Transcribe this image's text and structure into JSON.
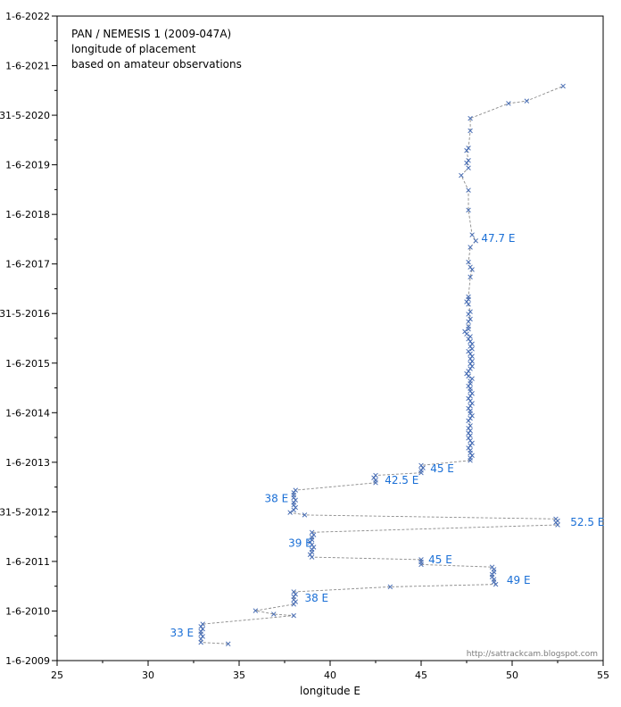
{
  "chart_data": {
    "type": "scatter",
    "title_lines": [
      "PAN / NEMESIS 1  (2009-047A)",
      "longitude of placement",
      "based on amateur observations"
    ],
    "xlabel": "longitude E",
    "ylabel": "",
    "xlim": [
      25,
      55
    ],
    "ylim": [
      2009.413,
      2022.413
    ],
    "x_ticks": [
      "25",
      "30",
      "35",
      "40",
      "45",
      "50",
      "55"
    ],
    "y_ticks": [
      "1-6-2009",
      "1-6-2010",
      "1-6-2011",
      "31-5-2012",
      "1-6-2013",
      "1-6-2014",
      "1-6-2015",
      "31-5-2016",
      "1-6-2017",
      "1-6-2018",
      "1-6-2019",
      "31-5-2020",
      "1-6-2021",
      "1-6-2022"
    ],
    "credit": "http://sattrackcam.blogspot.com",
    "series": [
      {
        "name": "longitude",
        "points": [
          [
            34.4,
            2009.75
          ],
          [
            32.9,
            2009.78
          ],
          [
            32.9,
            2009.85
          ],
          [
            33.0,
            2009.9
          ],
          [
            32.9,
            2009.95
          ],
          [
            32.9,
            2010.0
          ],
          [
            33.0,
            2010.05
          ],
          [
            32.9,
            2010.1
          ],
          [
            33.0,
            2010.15
          ],
          [
            38.0,
            2010.32
          ],
          [
            36.9,
            2010.35
          ],
          [
            35.9,
            2010.42
          ],
          [
            38.0,
            2010.55
          ],
          [
            38.1,
            2010.6
          ],
          [
            38.0,
            2010.64
          ],
          [
            38.0,
            2010.7
          ],
          [
            38.1,
            2010.75
          ],
          [
            38.0,
            2010.8
          ],
          [
            43.3,
            2010.9
          ],
          [
            49.1,
            2010.95
          ],
          [
            49.0,
            2011.0
          ],
          [
            49.0,
            2011.05
          ],
          [
            48.9,
            2011.1
          ],
          [
            48.9,
            2011.15
          ],
          [
            49.0,
            2011.2
          ],
          [
            49.0,
            2011.25
          ],
          [
            48.9,
            2011.3
          ],
          [
            45.0,
            2011.35
          ],
          [
            45.0,
            2011.4
          ],
          [
            45.0,
            2011.45
          ],
          [
            39.0,
            2011.5
          ],
          [
            38.9,
            2011.55
          ],
          [
            39.0,
            2011.6
          ],
          [
            39.0,
            2011.65
          ],
          [
            39.1,
            2011.7
          ],
          [
            39.0,
            2011.75
          ],
          [
            38.9,
            2011.8
          ],
          [
            39.0,
            2011.85
          ],
          [
            39.0,
            2011.9
          ],
          [
            39.1,
            2011.95
          ],
          [
            39.0,
            2012.0
          ],
          [
            52.5,
            2012.15
          ],
          [
            52.4,
            2012.2
          ],
          [
            52.5,
            2012.23
          ],
          [
            52.4,
            2012.27
          ],
          [
            38.6,
            2012.35
          ],
          [
            37.8,
            2012.4
          ],
          [
            38.0,
            2012.45
          ],
          [
            38.1,
            2012.5
          ],
          [
            38.0,
            2012.55
          ],
          [
            38.0,
            2012.6
          ],
          [
            38.1,
            2012.65
          ],
          [
            38.0,
            2012.7
          ],
          [
            38.0,
            2012.75
          ],
          [
            38.0,
            2012.8
          ],
          [
            38.1,
            2012.85
          ],
          [
            42.5,
            2013.0
          ],
          [
            42.5,
            2013.05
          ],
          [
            42.4,
            2013.1
          ],
          [
            42.5,
            2013.15
          ],
          [
            45.0,
            2013.2
          ],
          [
            45.0,
            2013.25
          ],
          [
            45.1,
            2013.3
          ],
          [
            45.0,
            2013.35
          ],
          [
            47.7,
            2013.45
          ],
          [
            47.7,
            2013.5
          ],
          [
            47.8,
            2013.55
          ],
          [
            47.7,
            2013.6
          ],
          [
            47.7,
            2013.65
          ],
          [
            47.6,
            2013.7
          ],
          [
            47.7,
            2013.75
          ],
          [
            47.8,
            2013.8
          ],
          [
            47.7,
            2013.85
          ],
          [
            47.6,
            2013.9
          ],
          [
            47.7,
            2013.95
          ],
          [
            47.6,
            2014.0
          ],
          [
            47.7,
            2014.05
          ],
          [
            47.6,
            2014.1
          ],
          [
            47.7,
            2014.15
          ],
          [
            47.6,
            2014.25
          ],
          [
            47.7,
            2014.3
          ],
          [
            47.8,
            2014.35
          ],
          [
            47.7,
            2014.4
          ],
          [
            47.7,
            2014.45
          ],
          [
            47.6,
            2014.5
          ],
          [
            47.7,
            2014.55
          ],
          [
            47.8,
            2014.6
          ],
          [
            47.7,
            2014.65
          ],
          [
            47.6,
            2014.7
          ],
          [
            47.7,
            2014.75
          ],
          [
            47.8,
            2014.8
          ],
          [
            47.7,
            2014.85
          ],
          [
            47.7,
            2014.9
          ],
          [
            47.6,
            2014.95
          ],
          [
            47.7,
            2015.0
          ],
          [
            47.7,
            2015.05
          ],
          [
            47.8,
            2015.1
          ],
          [
            47.6,
            2015.15
          ],
          [
            47.5,
            2015.2
          ],
          [
            47.6,
            2015.25
          ],
          [
            47.7,
            2015.3
          ],
          [
            47.8,
            2015.35
          ],
          [
            47.7,
            2015.4
          ],
          [
            47.8,
            2015.45
          ],
          [
            47.7,
            2015.5
          ],
          [
            47.8,
            2015.55
          ],
          [
            47.7,
            2015.6
          ],
          [
            47.6,
            2015.65
          ],
          [
            47.8,
            2015.7
          ],
          [
            47.7,
            2015.75
          ],
          [
            47.8,
            2015.8
          ],
          [
            47.7,
            2015.85
          ],
          [
            47.6,
            2015.9
          ],
          [
            47.7,
            2015.95
          ],
          [
            47.5,
            2016.0
          ],
          [
            47.4,
            2016.05
          ],
          [
            47.6,
            2016.1
          ],
          [
            47.6,
            2016.15
          ],
          [
            47.6,
            2016.25
          ],
          [
            47.7,
            2016.3
          ],
          [
            47.6,
            2016.4
          ],
          [
            47.7,
            2016.45
          ],
          [
            47.6,
            2016.6
          ],
          [
            47.5,
            2016.65
          ],
          [
            47.6,
            2016.7
          ],
          [
            47.6,
            2016.75
          ],
          [
            47.7,
            2017.15
          ],
          [
            47.8,
            2017.3
          ],
          [
            47.7,
            2017.35
          ],
          [
            47.6,
            2017.45
          ],
          [
            47.7,
            2017.75
          ],
          [
            48.0,
            2017.88
          ],
          [
            47.8,
            2018.0
          ],
          [
            47.6,
            2018.5
          ],
          [
            47.6,
            2018.9
          ],
          [
            47.2,
            2019.2
          ],
          [
            47.6,
            2019.35
          ],
          [
            47.5,
            2019.45
          ],
          [
            47.6,
            2019.5
          ],
          [
            47.5,
            2019.7
          ],
          [
            47.6,
            2019.75
          ],
          [
            47.7,
            2020.1
          ],
          [
            47.7,
            2020.35
          ],
          [
            49.8,
            2020.65
          ],
          [
            50.8,
            2020.7
          ],
          [
            52.8,
            2021.0
          ]
        ]
      }
    ],
    "annotations": [
      {
        "text": "33 E",
        "x": 31.2,
        "y": 2009.97
      },
      {
        "text": "38 E",
        "x": 38.6,
        "y": 2010.67
      },
      {
        "text": "49 E",
        "x": 49.7,
        "y": 2011.03
      },
      {
        "text": "45 E",
        "x": 45.4,
        "y": 2011.45
      },
      {
        "text": "39 E",
        "x": 37.7,
        "y": 2011.78
      },
      {
        "text": "52.5 E",
        "x": 53.2,
        "y": 2012.2
      },
      {
        "text": "38 E",
        "x": 36.4,
        "y": 2012.68
      },
      {
        "text": "42.5 E",
        "x": 43.0,
        "y": 2013.05
      },
      {
        "text": "45 E",
        "x": 45.5,
        "y": 2013.28
      },
      {
        "text": "47.7 E",
        "x": 48.3,
        "y": 2017.93
      }
    ]
  }
}
